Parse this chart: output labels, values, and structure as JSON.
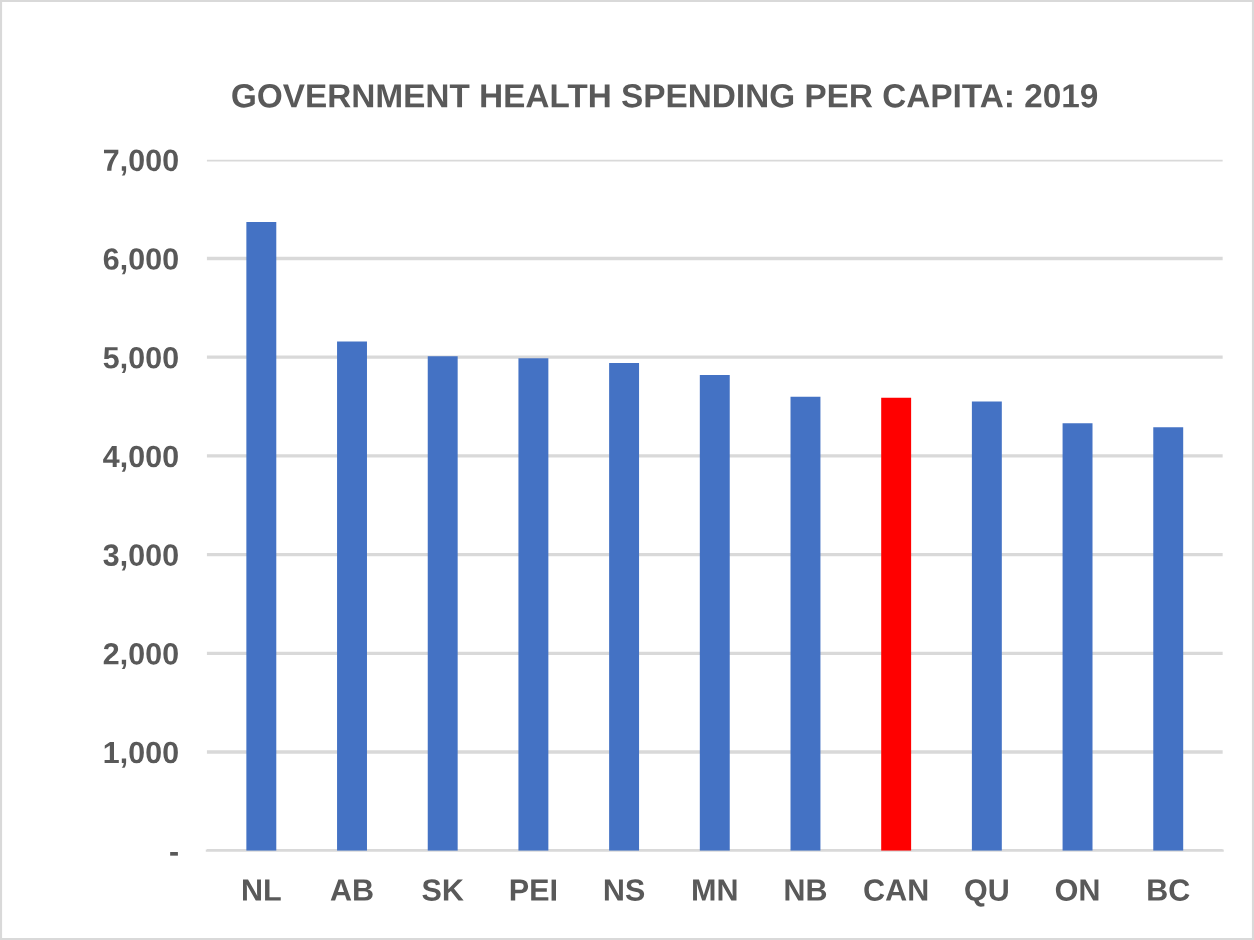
{
  "chart_data": {
    "type": "bar",
    "title": "GOVERNMENT HEALTH SPENDING PER CAPITA: 2019",
    "categories": [
      "NL",
      "AB",
      "SK",
      "PEI",
      "NS",
      "MN",
      "NB",
      "CAN",
      "QU",
      "ON",
      "BC"
    ],
    "values": [
      6370,
      5160,
      5010,
      4990,
      4940,
      4820,
      4600,
      4590,
      4550,
      4330,
      4290
    ],
    "colors": [
      "#4472c4",
      "#4472c4",
      "#4472c4",
      "#4472c4",
      "#4472c4",
      "#4472c4",
      "#4472c4",
      "#ff0000",
      "#4472c4",
      "#4472c4",
      "#4472c4"
    ],
    "ylim": [
      0,
      7000
    ],
    "yticks": [
      {
        "value": 0,
        "label": "-"
      },
      {
        "value": 1000,
        "label": "1,000"
      },
      {
        "value": 2000,
        "label": "2,000"
      },
      {
        "value": 3000,
        "label": "3,000"
      },
      {
        "value": 4000,
        "label": "4,000"
      },
      {
        "value": 5000,
        "label": "5,000"
      },
      {
        "value": 6000,
        "label": "6,000"
      },
      {
        "value": 7000,
        "label": "7,000"
      }
    ],
    "grid": "y",
    "legend": false
  }
}
